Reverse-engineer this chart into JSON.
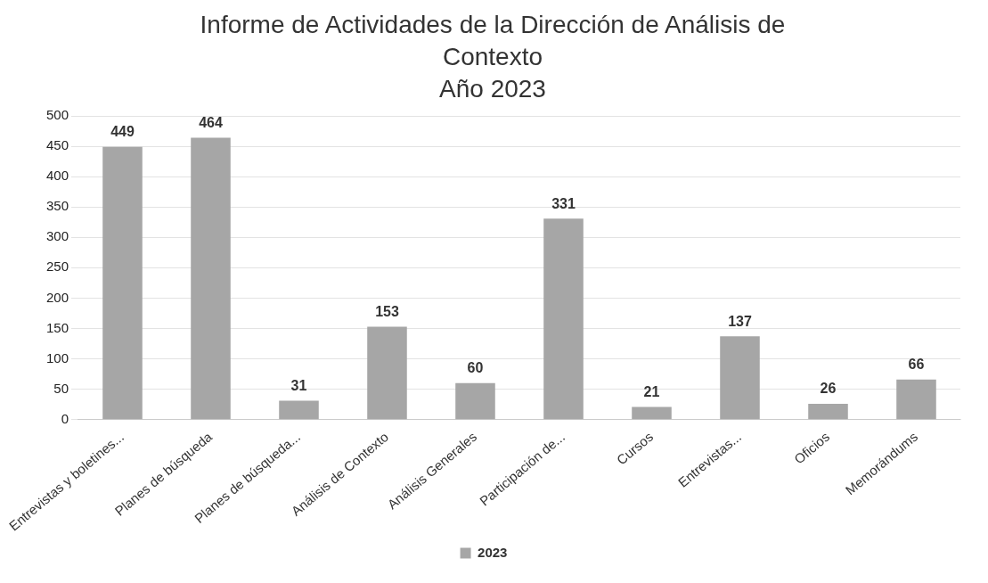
{
  "chart_data": {
    "type": "bar",
    "title": "Informe de Actividades de la Dirección de Análisis de Contexto",
    "subtitle": "Año 2023",
    "categories": [
      "Entrevistas y boletines...",
      "Planes de búsqueda",
      "Planes de búsqueda...",
      "Análisis de Contexto",
      "Análisis Generales",
      "Participación de...",
      "Cursos",
      "Entrevistas...",
      "Oficios",
      "Memorándums"
    ],
    "series": [
      {
        "name": "2023",
        "color": "#a6a6a6",
        "values": [
          449,
          464,
          31,
          153,
          60,
          331,
          21,
          137,
          26,
          66
        ]
      }
    ],
    "ylim": [
      0,
      500
    ],
    "yticks": [
      0,
      50,
      100,
      150,
      200,
      250,
      300,
      350,
      400,
      450,
      500
    ],
    "grid": "y",
    "legend": "bottom",
    "data_labels": true
  }
}
